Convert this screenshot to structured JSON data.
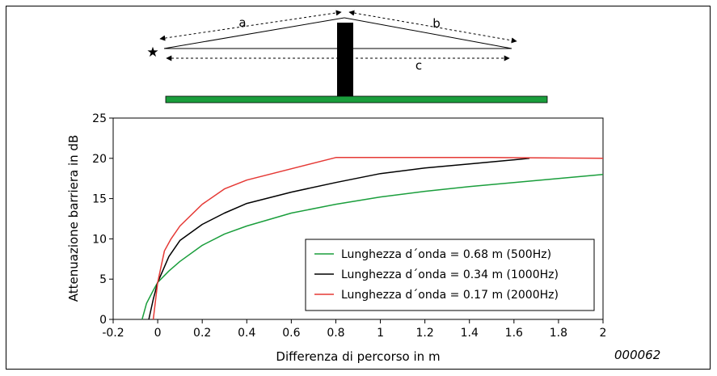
{
  "diagram": {
    "labels": {
      "a": "a",
      "b": "b",
      "c": "c"
    },
    "source_symbol": "★",
    "colors": {
      "ground": "#1a9e3c",
      "barrier": "#000000"
    }
  },
  "figure_code": "000062",
  "chart_data": {
    "type": "line",
    "title": "",
    "xlabel": "Differenza di percorso in m",
    "ylabel": "Attenuazione barriera in dB",
    "xlim": [
      -0.2,
      2
    ],
    "ylim": [
      0,
      25
    ],
    "xticks": [
      "-0.2",
      "0",
      "0.2",
      "0.4",
      "0.6",
      "0.8",
      "1",
      "1.2",
      "1.4",
      "1.6",
      "1.8",
      "2"
    ],
    "xtick_values": [
      -0.2,
      0,
      0.2,
      0.4,
      0.6,
      0.8,
      1,
      1.2,
      1.4,
      1.6,
      1.8,
      2
    ],
    "yticks": [
      "0",
      "5",
      "10",
      "15",
      "20",
      "25"
    ],
    "ytick_values": [
      0,
      5,
      10,
      15,
      20,
      25
    ],
    "grid": false,
    "legend_position": "bottom-right",
    "series": [
      {
        "name": "Lunghezza d´onda = 0.68 m (500Hz)",
        "color": "#1a9e3c",
        "x": [
          -0.07,
          -0.05,
          -0.02,
          0,
          0.05,
          0.1,
          0.2,
          0.3,
          0.4,
          0.6,
          0.8,
          1.0,
          1.2,
          1.4,
          1.6,
          1.8,
          2.0
        ],
        "y": [
          0,
          2.0,
          3.6,
          4.6,
          6.0,
          7.2,
          9.2,
          10.6,
          11.6,
          13.2,
          14.3,
          15.2,
          15.9,
          16.5,
          17.0,
          17.5,
          18.0
        ]
      },
      {
        "name": "Lunghezza d´onda = 0.34 m (1000Hz)",
        "color": "#000000",
        "x": [
          -0.04,
          -0.02,
          0,
          0.05,
          0.1,
          0.2,
          0.3,
          0.4,
          0.6,
          0.8,
          1.0,
          1.2,
          1.4,
          1.67
        ],
        "y": [
          0,
          2.5,
          4.6,
          7.8,
          9.8,
          11.8,
          13.2,
          14.4,
          15.8,
          17.0,
          18.1,
          18.8,
          19.3,
          20.0
        ]
      },
      {
        "name": "Lunghezza d´onda = 0.17 m (2000Hz)",
        "color": "#e53935",
        "x": [
          -0.02,
          0,
          0.03,
          0.06,
          0.1,
          0.2,
          0.3,
          0.4,
          0.8,
          1.0,
          1.5,
          2.0
        ],
        "y": [
          0,
          4.6,
          8.5,
          10.0,
          11.6,
          14.3,
          16.2,
          17.3,
          20.1,
          20.1,
          20.1,
          20.0
        ]
      }
    ]
  }
}
